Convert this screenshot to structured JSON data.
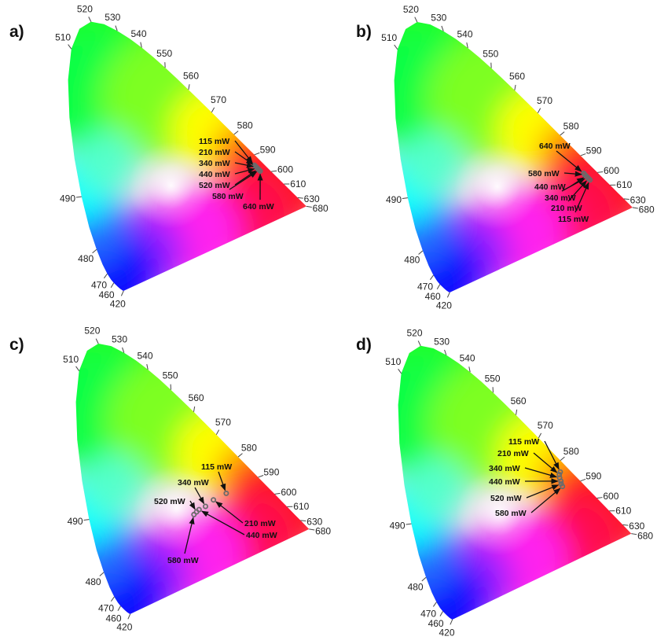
{
  "chart_data": [
    {
      "type": "scatter",
      "panel": "a)",
      "wavelength_ticks": [
        "420",
        "460",
        "470",
        "480",
        "490",
        "510",
        "520",
        "530",
        "540",
        "550",
        "560",
        "570",
        "580",
        "590",
        "600",
        "610",
        "630",
        "680"
      ],
      "points": [
        {
          "label": "115 mW",
          "x": 0.575,
          "y": 0.392
        },
        {
          "label": "210 mW",
          "x": 0.578,
          "y": 0.389
        },
        {
          "label": "340 mW",
          "x": 0.581,
          "y": 0.386
        },
        {
          "label": "440 mW",
          "x": 0.584,
          "y": 0.383
        },
        {
          "label": "520 mW",
          "x": 0.587,
          "y": 0.38
        },
        {
          "label": "580 mW",
          "x": 0.59,
          "y": 0.377
        },
        {
          "label": "640 mW",
          "x": 0.593,
          "y": 0.374
        }
      ]
    },
    {
      "type": "scatter",
      "panel": "b)",
      "wavelength_ticks": [
        "420",
        "460",
        "470",
        "480",
        "490",
        "510",
        "520",
        "530",
        "540",
        "550",
        "560",
        "570",
        "580",
        "590",
        "600",
        "610",
        "630",
        "680"
      ],
      "points": [
        {
          "label": "640 mW",
          "x": 0.585,
          "y": 0.37
        },
        {
          "label": "580 mW",
          "x": 0.588,
          "y": 0.366
        },
        {
          "label": "440 mW",
          "x": 0.592,
          "y": 0.362
        },
        {
          "label": "340 mW",
          "x": 0.596,
          "y": 0.358
        },
        {
          "label": "210 mW",
          "x": 0.6,
          "y": 0.354
        },
        {
          "label": "115 mW",
          "x": 0.604,
          "y": 0.35
        }
      ]
    },
    {
      "type": "scatter",
      "panel": "c)",
      "wavelength_ticks": [
        "420",
        "460",
        "470",
        "480",
        "490",
        "510",
        "520",
        "530",
        "540",
        "550",
        "560",
        "570",
        "580",
        "590",
        "600",
        "610",
        "630",
        "680"
      ],
      "points": [
        {
          "label": "115 mW",
          "x": 0.475,
          "y": 0.375
        },
        {
          "label": "210 mW",
          "x": 0.435,
          "y": 0.355
        },
        {
          "label": "340 mW",
          "x": 0.41,
          "y": 0.335
        },
        {
          "label": "440 mW",
          "x": 0.39,
          "y": 0.325
        },
        {
          "label": "520 mW",
          "x": 0.382,
          "y": 0.318
        },
        {
          "label": "580 mW",
          "x": 0.374,
          "y": 0.31
        }
      ]
    },
    {
      "type": "scatter",
      "panel": "d)",
      "wavelength_ticks": [
        "420",
        "460",
        "470",
        "480",
        "490",
        "510",
        "520",
        "530",
        "540",
        "550",
        "560",
        "570",
        "580",
        "590",
        "600",
        "610",
        "630",
        "680"
      ],
      "points": [
        {
          "label": "115 mW",
          "x": 0.512,
          "y": 0.452
        },
        {
          "label": "210 mW",
          "x": 0.509,
          "y": 0.444
        },
        {
          "label": "340 mW",
          "x": 0.51,
          "y": 0.434
        },
        {
          "label": "440 mW",
          "x": 0.514,
          "y": 0.424
        },
        {
          "label": "520 mW",
          "x": 0.515,
          "y": 0.416
        },
        {
          "label": "580 mW",
          "x": 0.519,
          "y": 0.408
        }
      ]
    }
  ]
}
